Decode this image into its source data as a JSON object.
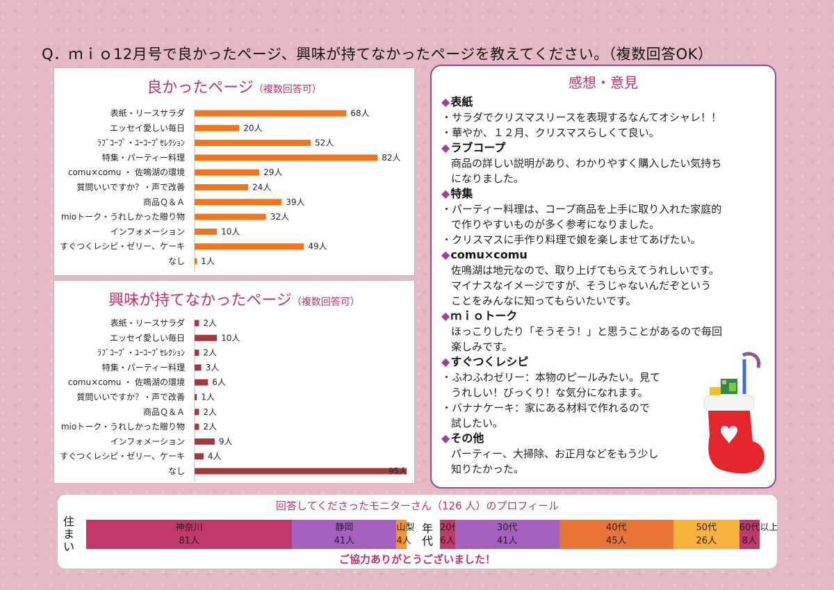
{
  "question": "Q．ｍｉｏ12月号で良かったページ、興味が持てなかったページを教えてください。（複数回答OK）",
  "charts": {
    "good": {
      "title": "良かったページ",
      "subtitle": "（複数回答可）"
    },
    "bad": {
      "title": "興味が持てなかったページ",
      "subtitle": "（複数回答可）"
    }
  },
  "chart_data": [
    {
      "type": "bar",
      "orientation": "horizontal",
      "title": "良かったページ（複数回答可）",
      "color": "#f2751d",
      "categories": [
        "表紙・リースサラダ",
        "エッセイ愛しい毎日",
        "ﾗﾌﾞｺｰﾌﾟ・ﾕｰｺｰﾌﾟｾﾚｸｼｮﾝ",
        "特集・パーティー料理",
        "comu×comu ・ 佐鳴湖の環境",
        "質問いいですか？・声で改善",
        "商品Ｑ＆Ａ",
        "mioトーク・うれしかった贈り物",
        "インフォメーション",
        "すぐつくレシピ・ゼリー、ケーキ",
        "なし"
      ],
      "values": [
        68,
        20,
        52,
        82,
        29,
        24,
        39,
        32,
        10,
        49,
        1
      ],
      "value_labels": [
        "68人",
        "20人",
        "52人",
        "82人",
        "29人",
        "24人",
        "39人",
        "32人",
        "10人",
        "49人",
        "1人"
      ],
      "xlim": [
        0,
        95
      ]
    },
    {
      "type": "bar",
      "orientation": "horizontal",
      "title": "興味が持てなかったページ（複数回答可）",
      "color": "#a5383e",
      "categories": [
        "表紙・リースサラダ",
        "エッセイ愛しい毎日",
        "ﾗﾌﾞｺｰﾌﾟ・ﾕｰｺｰﾌﾟｾﾚｸｼｮﾝ",
        "特集・パーティー料理",
        "comu×comu ・ 佐鳴湖の環境",
        "質問いいですか？・声で改善",
        "商品Ｑ＆Ａ",
        "mioトーク・うれしかった贈り物",
        "インフォメーション",
        "すぐつくレシピ・ゼリー、ケーキ",
        "なし"
      ],
      "values": [
        2,
        10,
        2,
        3,
        6,
        1,
        2,
        2,
        9,
        4,
        95
      ],
      "value_labels": [
        "2人",
        "10人",
        "2人",
        "3人",
        "6人",
        "1人",
        "2人",
        "2人",
        "9人",
        "4人",
        "95人"
      ],
      "xlim": [
        0,
        95
      ]
    },
    {
      "type": "bar",
      "orientation": "stacked-horizontal",
      "title": "回答してくださったモニターさん（126人）のプロフィール",
      "group": "住まい",
      "categories": [
        "神奈川",
        "静岡",
        "山梨"
      ],
      "values": [
        81,
        41,
        4
      ],
      "value_labels": [
        "81人",
        "41人",
        "4人"
      ],
      "colors": [
        "#c0396b",
        "#a660c0",
        "#f09434"
      ]
    },
    {
      "type": "bar",
      "orientation": "stacked-horizontal",
      "group": "年代",
      "categories": [
        "20代",
        "30代",
        "40代",
        "50代",
        "60代以上"
      ],
      "values": [
        6,
        41,
        45,
        26,
        8
      ],
      "value_labels": [
        "6人",
        "41人",
        "45人",
        "26人",
        "8人"
      ],
      "colors": [
        "#c0396b",
        "#a660c0",
        "#e87535",
        "#f7b23b",
        "#c0396b"
      ]
    }
  ],
  "comments": {
    "title": "感想・意見",
    "sections": [
      {
        "head": "表紙",
        "items": [
          {
            "t": "・サラダでクリスマスリースを表現するなんてオシャレ！！"
          },
          {
            "t": "・華やか、１２月、クリスマスらしくて良い。"
          }
        ]
      },
      {
        "head": "ラブコープ",
        "items": [
          {
            "t": "商品の詳しい説明があり、わかりやすく購入したい気持ち",
            "plain": true
          },
          {
            "t": "になりました。",
            "plain": true
          }
        ]
      },
      {
        "head": "特集",
        "items": [
          {
            "t": "・パーティー料理は、コープ商品を上手に取り入れた家庭的"
          },
          {
            "t": "で作りやすいものが多く参考になりました。",
            "plain": true
          },
          {
            "t": "・クリスマスに手作り料理で娘を楽しませてあげたい。"
          }
        ]
      },
      {
        "head": "comu×comu",
        "items": [
          {
            "t": "佐鳴湖は地元なので、取り上げてもらえてうれしいです。",
            "plain": true
          },
          {
            "t": "マイナスなイメージですが、そうじゃないんだぞという",
            "plain": true
          },
          {
            "t": "ことをみんなに知ってもらいたいです。",
            "plain": true
          }
        ]
      },
      {
        "head": "ｍｉｏトーク",
        "items": [
          {
            "t": "ほっこりしたり「そうそう！」と思うことがあるので毎回",
            "plain": true
          },
          {
            "t": "楽しみです。",
            "plain": true
          }
        ]
      },
      {
        "head": "すぐつくレシピ",
        "items": [
          {
            "t": "・ふわふわゼリー：本物のピールみたい。見て"
          },
          {
            "t": "うれしい！びっくり！な気分になれます。",
            "plain": true
          },
          {
            "t": "・バナナケーキ：家にある材料で作れるので"
          },
          {
            "t": "試したい。",
            "plain": true
          }
        ]
      },
      {
        "head": "その他",
        "items": [
          {
            "t": "パーティー、大掃除、お正月などをもう少し",
            "plain": true
          },
          {
            "t": "知りたかった。",
            "plain": true
          }
        ]
      }
    ]
  },
  "profile": {
    "title": "回答してくださったモニターさん（126 人）のプロフィール",
    "residence_label_1": "住",
    "residence_label_2": "ま",
    "residence_label_3": "い",
    "age_label_1": "年",
    "age_label_2": "代",
    "thanks": "ご協力ありがとうございました！"
  }
}
